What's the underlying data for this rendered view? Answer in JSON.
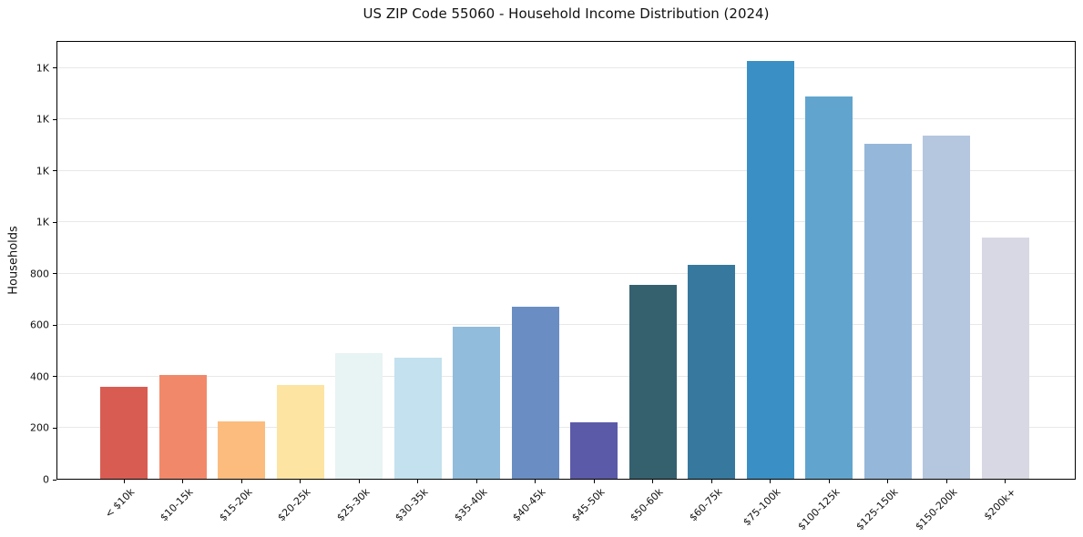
{
  "chart_data": {
    "type": "bar",
    "title": "US ZIP Code 55060 - Household Income Distribution (2024)",
    "xlabel": "",
    "ylabel": "Households",
    "categories": [
      "< $10k",
      "$10-15k",
      "$15-20k",
      "$20-25k",
      "$25-30k",
      "$30-35k",
      "$35-40k",
      "$40-45k",
      "$45-50k",
      "$50-60k",
      "$60-75k",
      "$75-100k",
      "$100-125k",
      "$125-150k",
      "$150-200k",
      "$200k+"
    ],
    "values": [
      358,
      404,
      224,
      366,
      489,
      472,
      590,
      667,
      221,
      752,
      833,
      1624,
      1486,
      1301,
      1334,
      936
    ],
    "bar_colors": [
      "#d95c52",
      "#f2886a",
      "#fbbc7e",
      "#fde4a3",
      "#e8f3f3",
      "#c3e1ee",
      "#91bcdc",
      "#6a8ec4",
      "#5b5aa8",
      "#35616f",
      "#37799e",
      "#3a90c4",
      "#61a5cf",
      "#95b7d9",
      "#b5c6df",
      "#d8d8e5"
    ],
    "ylim": [
      0,
      1705
    ],
    "yticks": [
      {
        "value": 0,
        "label": "0"
      },
      {
        "value": 200,
        "label": "200"
      },
      {
        "value": 400,
        "label": "400"
      },
      {
        "value": 600,
        "label": "600"
      },
      {
        "value": 800,
        "label": "800"
      },
      {
        "value": 1000,
        "label": "1K"
      },
      {
        "value": 1200,
        "label": "1K"
      },
      {
        "value": 1400,
        "label": "1K"
      },
      {
        "value": 1600,
        "label": "1K"
      }
    ],
    "grid": "horizontal",
    "legend": "none",
    "colors": {
      "background": "#ffffff",
      "gridline": "#e8e8e8",
      "spine": "#000000",
      "text": "#1a1a1a"
    }
  }
}
